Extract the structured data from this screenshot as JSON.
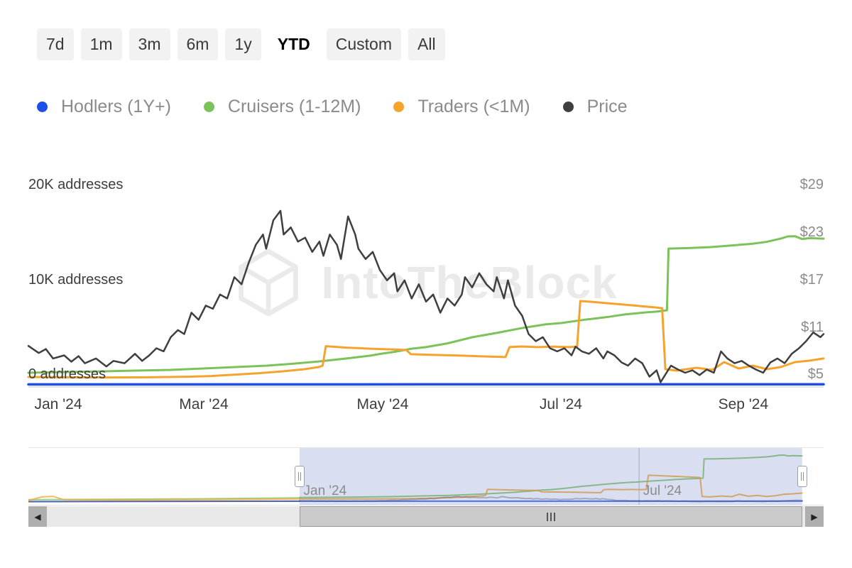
{
  "toolbar": {
    "ranges": [
      {
        "label": "7d",
        "selected": false
      },
      {
        "label": "1m",
        "selected": false
      },
      {
        "label": "3m",
        "selected": false
      },
      {
        "label": "6m",
        "selected": false
      },
      {
        "label": "1y",
        "selected": false
      },
      {
        "label": "YTD",
        "selected": true
      },
      {
        "label": "Custom",
        "selected": false
      },
      {
        "label": "All",
        "selected": false
      }
    ]
  },
  "watermark": {
    "text": "IntoTheBlock"
  },
  "chart_data": {
    "type": "line",
    "x_ticks": [
      {
        "label": "Jan '24",
        "f": 0.0375
      },
      {
        "label": "Mar '24",
        "f": 0.2205
      },
      {
        "label": "May '24",
        "f": 0.4455
      },
      {
        "label": "Jul '24",
        "f": 0.6696
      },
      {
        "label": "Sep '24",
        "f": 0.899
      }
    ],
    "y_left": {
      "unit": "addresses",
      "range": [
        0,
        20000
      ],
      "ticks": [
        {
          "label": "0 addresses",
          "value": 0
        },
        {
          "label": "10K addresses",
          "value": 10000
        },
        {
          "label": "20K addresses",
          "value": 20000
        }
      ]
    },
    "y_right": {
      "unit": "USD",
      "range": [
        5,
        29
      ],
      "ticks": [
        {
          "label": "$5",
          "value": 5
        },
        {
          "label": "$11",
          "value": 11
        },
        {
          "label": "$17",
          "value": 17
        },
        {
          "label": "$23",
          "value": 23
        },
        {
          "label": "$29",
          "value": 29
        }
      ]
    },
    "series": [
      {
        "name": "Hodlers (1Y+)",
        "color": "#1d4fe8",
        "axis": "addresses",
        "width": 3.5,
        "points": [
          [
            0,
            270
          ],
          [
            0.25,
            270
          ],
          [
            0.5,
            275
          ],
          [
            0.75,
            275
          ],
          [
            1,
            280
          ]
        ]
      },
      {
        "name": "Cruisers (1-12M)",
        "color": "#7bc25a",
        "axis": "addresses",
        "width": 3,
        "points": [
          [
            0,
            1500
          ],
          [
            0.045,
            1570
          ],
          [
            0.089,
            1640
          ],
          [
            0.134,
            1720
          ],
          [
            0.179,
            1800
          ],
          [
            0.22,
            1950
          ],
          [
            0.26,
            2100
          ],
          [
            0.3,
            2250
          ],
          [
            0.333,
            2450
          ],
          [
            0.366,
            2700
          ],
          [
            0.4,
            3000
          ],
          [
            0.43,
            3300
          ],
          [
            0.445,
            3520
          ],
          [
            0.46,
            3700
          ],
          [
            0.482,
            4040
          ],
          [
            0.5,
            4200
          ],
          [
            0.527,
            4600
          ],
          [
            0.558,
            5240
          ],
          [
            0.589,
            5700
          ],
          [
            0.62,
            6200
          ],
          [
            0.65,
            6600
          ],
          [
            0.67,
            6740
          ],
          [
            0.7,
            7100
          ],
          [
            0.73,
            7400
          ],
          [
            0.75,
            7650
          ],
          [
            0.775,
            7860
          ],
          [
            0.79,
            7950
          ],
          [
            0.8,
            8050
          ],
          [
            0.803,
            8090
          ],
          [
            0.805,
            14600
          ],
          [
            0.83,
            14650
          ],
          [
            0.857,
            14750
          ],
          [
            0.88,
            14900
          ],
          [
            0.91,
            15100
          ],
          [
            0.928,
            15300
          ],
          [
            0.946,
            15650
          ],
          [
            0.955,
            15880
          ],
          [
            0.964,
            15900
          ],
          [
            0.973,
            15600
          ],
          [
            0.982,
            15700
          ],
          [
            1,
            15650
          ]
        ]
      },
      {
        "name": "Traders (<1M)",
        "color": "#f5a32d",
        "axis": "addresses",
        "width": 3,
        "points": [
          [
            0,
            1050
          ],
          [
            0.05,
            1020
          ],
          [
            0.1,
            1000
          ],
          [
            0.15,
            1020
          ],
          [
            0.2,
            1080
          ],
          [
            0.23,
            1150
          ],
          [
            0.26,
            1300
          ],
          [
            0.29,
            1450
          ],
          [
            0.32,
            1650
          ],
          [
            0.345,
            1850
          ],
          [
            0.365,
            2100
          ],
          [
            0.37,
            2250
          ],
          [
            0.374,
            4300
          ],
          [
            0.4,
            4150
          ],
          [
            0.43,
            4040
          ],
          [
            0.46,
            3950
          ],
          [
            0.475,
            3900
          ],
          [
            0.481,
            3450
          ],
          [
            0.51,
            3380
          ],
          [
            0.545,
            3300
          ],
          [
            0.58,
            3200
          ],
          [
            0.6,
            3150
          ],
          [
            0.605,
            4200
          ],
          [
            0.62,
            4270
          ],
          [
            0.64,
            4200
          ],
          [
            0.66,
            4250
          ],
          [
            0.68,
            4200
          ],
          [
            0.69,
            4250
          ],
          [
            0.694,
            9060
          ],
          [
            0.71,
            8970
          ],
          [
            0.73,
            8820
          ],
          [
            0.75,
            8680
          ],
          [
            0.77,
            8530
          ],
          [
            0.79,
            8380
          ],
          [
            0.797,
            8310
          ],
          [
            0.801,
            1870
          ],
          [
            0.815,
            1720
          ],
          [
            0.84,
            2020
          ],
          [
            0.86,
            1800
          ],
          [
            0.875,
            2620
          ],
          [
            0.893,
            1950
          ],
          [
            0.911,
            2250
          ],
          [
            0.929,
            1870
          ],
          [
            0.946,
            2100
          ],
          [
            0.964,
            2620
          ],
          [
            0.982,
            2770
          ],
          [
            1,
            3000
          ]
        ]
      },
      {
        "name": "Price",
        "color": "#3f3f3f",
        "axis": "price",
        "width": 2.5,
        "points": [
          [
            0,
            10.2
          ],
          [
            0.013,
            9.3
          ],
          [
            0.022,
            9.8
          ],
          [
            0.031,
            8.6
          ],
          [
            0.045,
            9.0
          ],
          [
            0.054,
            8.2
          ],
          [
            0.063,
            8.9
          ],
          [
            0.071,
            8.0
          ],
          [
            0.085,
            8.6
          ],
          [
            0.098,
            7.6
          ],
          [
            0.107,
            8.3
          ],
          [
            0.121,
            8.0
          ],
          [
            0.134,
            9.2
          ],
          [
            0.143,
            8.3
          ],
          [
            0.152,
            9.0
          ],
          [
            0.161,
            9.9
          ],
          [
            0.17,
            9.5
          ],
          [
            0.179,
            11.3
          ],
          [
            0.188,
            12.2
          ],
          [
            0.196,
            11.7
          ],
          [
            0.205,
            14.4
          ],
          [
            0.214,
            13.5
          ],
          [
            0.223,
            15.3
          ],
          [
            0.232,
            14.9
          ],
          [
            0.241,
            16.7
          ],
          [
            0.25,
            16.2
          ],
          [
            0.259,
            18.9
          ],
          [
            0.268,
            18.0
          ],
          [
            0.277,
            20.7
          ],
          [
            0.286,
            23.0
          ],
          [
            0.295,
            24.3
          ],
          [
            0.299,
            22.5
          ],
          [
            0.308,
            26.1
          ],
          [
            0.317,
            27.3
          ],
          [
            0.321,
            24.3
          ],
          [
            0.33,
            25.2
          ],
          [
            0.339,
            23.4
          ],
          [
            0.348,
            23.9
          ],
          [
            0.357,
            22.1
          ],
          [
            0.366,
            23.4
          ],
          [
            0.371,
            21.6
          ],
          [
            0.379,
            24.3
          ],
          [
            0.388,
            23.0
          ],
          [
            0.393,
            21.2
          ],
          [
            0.402,
            26.6
          ],
          [
            0.411,
            24.3
          ],
          [
            0.415,
            22.5
          ],
          [
            0.424,
            21.2
          ],
          [
            0.433,
            22.1
          ],
          [
            0.442,
            19.8
          ],
          [
            0.451,
            18.5
          ],
          [
            0.46,
            19.4
          ],
          [
            0.464,
            17.1
          ],
          [
            0.473,
            18.5
          ],
          [
            0.482,
            16.2
          ],
          [
            0.491,
            18.0
          ],
          [
            0.5,
            15.8
          ],
          [
            0.509,
            16.7
          ],
          [
            0.518,
            14.4
          ],
          [
            0.527,
            16.2
          ],
          [
            0.536,
            15.3
          ],
          [
            0.545,
            16.7
          ],
          [
            0.549,
            18.9
          ],
          [
            0.558,
            17.6
          ],
          [
            0.567,
            19.4
          ],
          [
            0.576,
            18.0
          ],
          [
            0.585,
            17.1
          ],
          [
            0.589,
            18.9
          ],
          [
            0.598,
            16.2
          ],
          [
            0.603,
            18.5
          ],
          [
            0.612,
            15.3
          ],
          [
            0.621,
            14.0
          ],
          [
            0.629,
            11.7
          ],
          [
            0.638,
            10.8
          ],
          [
            0.647,
            11.3
          ],
          [
            0.656,
            9.9
          ],
          [
            0.665,
            9.5
          ],
          [
            0.674,
            9.9
          ],
          [
            0.683,
            9.0
          ],
          [
            0.688,
            10.1
          ],
          [
            0.696,
            9.5
          ],
          [
            0.705,
            9.2
          ],
          [
            0.714,
            9.9
          ],
          [
            0.723,
            8.6
          ],
          [
            0.728,
            9.5
          ],
          [
            0.737,
            9.0
          ],
          [
            0.746,
            8.1
          ],
          [
            0.754,
            7.7
          ],
          [
            0.763,
            8.6
          ],
          [
            0.772,
            8.0
          ],
          [
            0.781,
            6.3
          ],
          [
            0.79,
            7.1
          ],
          [
            0.795,
            5.6
          ],
          [
            0.808,
            7.7
          ],
          [
            0.817,
            7.2
          ],
          [
            0.826,
            6.8
          ],
          [
            0.835,
            7.1
          ],
          [
            0.844,
            6.5
          ],
          [
            0.853,
            7.2
          ],
          [
            0.862,
            6.8
          ],
          [
            0.871,
            9.5
          ],
          [
            0.879,
            8.6
          ],
          [
            0.888,
            8.0
          ],
          [
            0.897,
            8.3
          ],
          [
            0.906,
            7.7
          ],
          [
            0.915,
            7.2
          ],
          [
            0.924,
            6.8
          ],
          [
            0.933,
            8.1
          ],
          [
            0.942,
            8.6
          ],
          [
            0.951,
            8.0
          ],
          [
            0.96,
            9.2
          ],
          [
            0.969,
            9.9
          ],
          [
            0.978,
            10.8
          ],
          [
            0.987,
            11.9
          ],
          [
            0.996,
            11.3
          ],
          [
            1,
            11.7
          ]
        ]
      }
    ]
  },
  "navigator": {
    "selection": {
      "start_f": 0.341,
      "end_f": 0.973
    },
    "gridline_f": 0.768,
    "labels": [
      {
        "text": "Jan '24",
        "f": 0.346
      },
      {
        "text": "Jul '24",
        "f": 0.773
      }
    ],
    "pre_series": [
      {
        "name": "Hodlers (1Y+)",
        "color": "#1d4fe8",
        "axis": "addresses",
        "points": [
          [
            0,
            150
          ],
          [
            1,
            250
          ]
        ]
      },
      {
        "name": "Cruisers (1-12M)",
        "color": "#7bc25a",
        "axis": "addresses",
        "points": [
          [
            0,
            800
          ],
          [
            0.3,
            900
          ],
          [
            0.6,
            1050
          ],
          [
            1,
            1400
          ]
        ]
      },
      {
        "name": "Traders (<1M)",
        "color": "#f5a32d",
        "axis": "addresses",
        "points": [
          [
            0,
            500
          ],
          [
            0.05,
            1700
          ],
          [
            0.09,
            1900
          ],
          [
            0.13,
            800
          ],
          [
            0.4,
            700
          ],
          [
            0.7,
            800
          ],
          [
            1,
            1000
          ]
        ]
      },
      {
        "name": "Price",
        "color": "#3f3f3f",
        "axis": "price",
        "points": [
          [
            0,
            6
          ],
          [
            0.5,
            7
          ],
          [
            1,
            9
          ]
        ]
      }
    ]
  },
  "scrollbar": {
    "left_glyph": "◀",
    "right_glyph": "▶"
  }
}
